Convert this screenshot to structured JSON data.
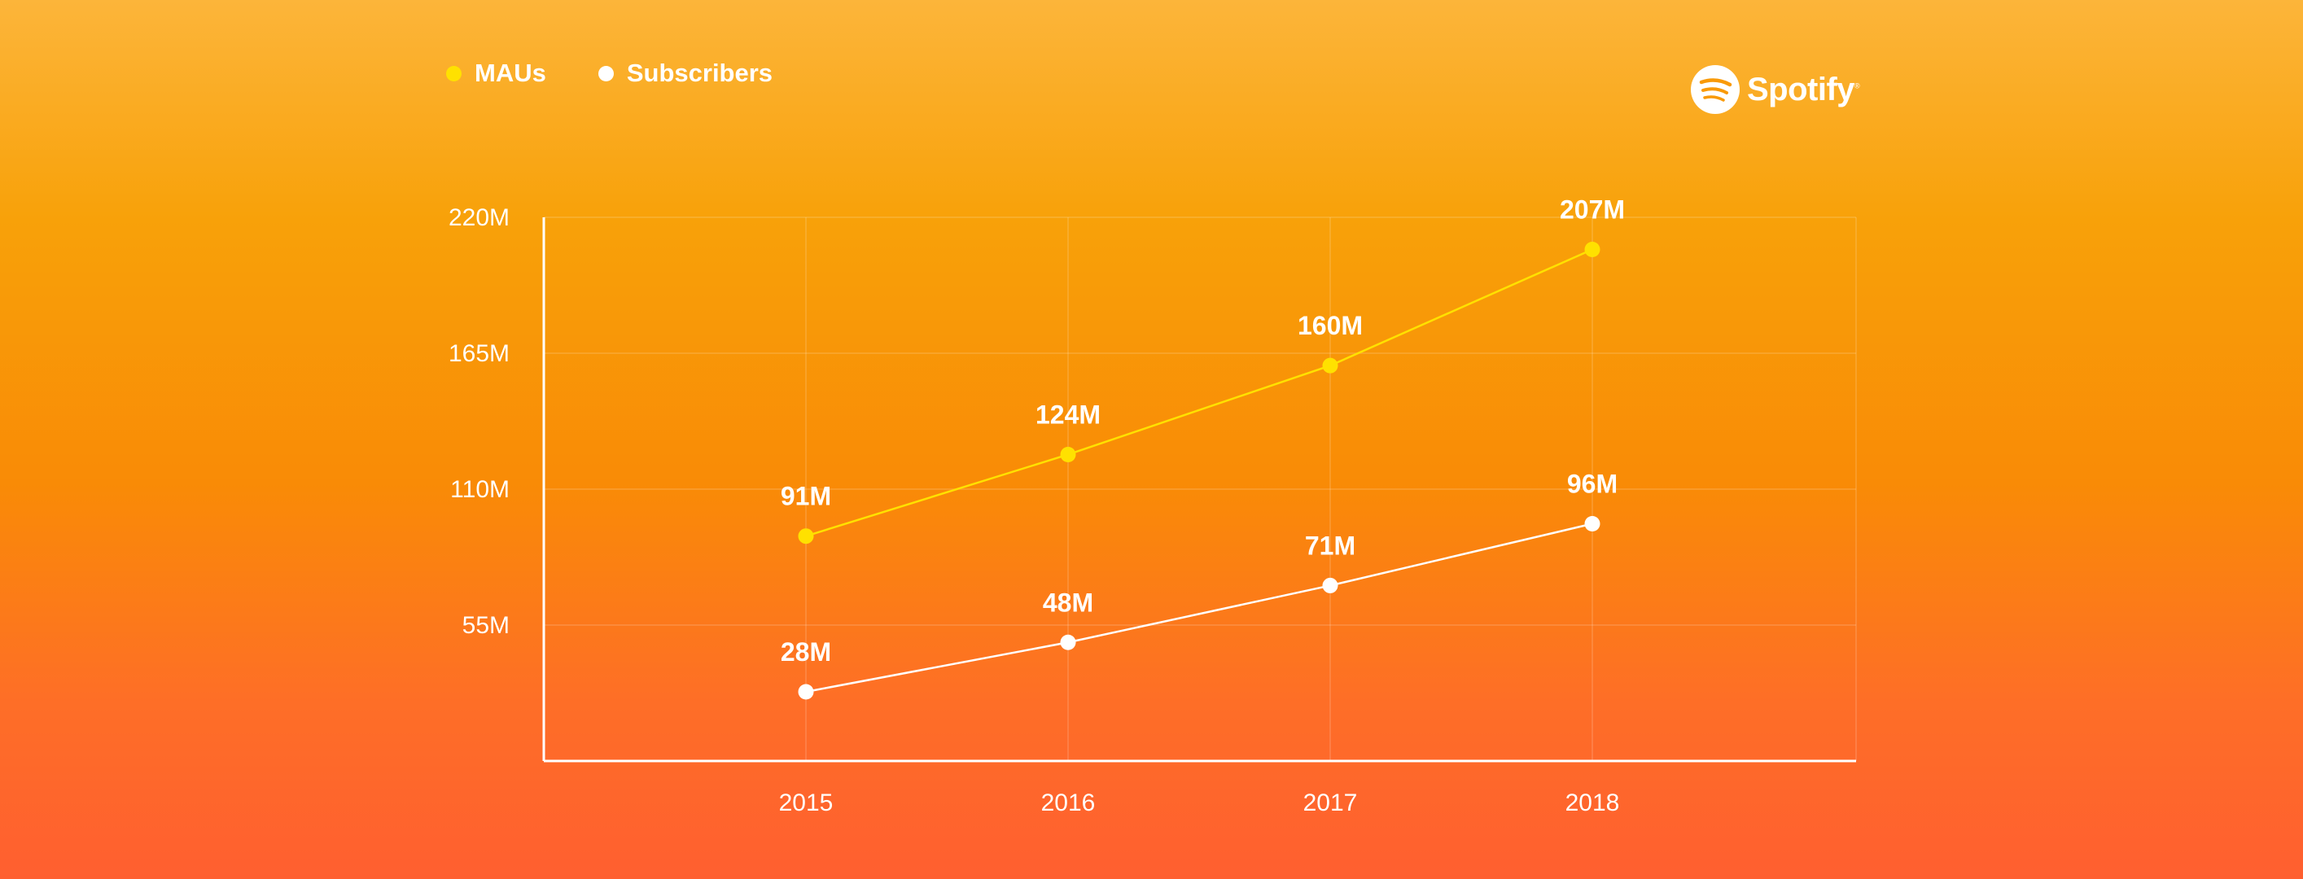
{
  "brand": {
    "name": "Spotify",
    "mark": "®"
  },
  "legend": {
    "items": [
      {
        "label": "MAUs",
        "color": "#ffe100"
      },
      {
        "label": "Subscribers",
        "color": "#ffffff"
      }
    ]
  },
  "colors": {
    "axis": "#ffffff",
    "grid": "rgba(255,255,255,0.18)",
    "background_top": "#fcb53a",
    "background_bottom": "#ff5f30"
  },
  "chart_data": {
    "type": "line",
    "title": "",
    "xlabel": "",
    "ylabel": "",
    "x": [
      "2015",
      "2016",
      "2017",
      "2018"
    ],
    "ylim": [
      0,
      220
    ],
    "y_ticks": [
      55,
      110,
      165,
      220
    ],
    "y_tick_labels": [
      "55M",
      "110M",
      "165M",
      "220M"
    ],
    "grid": true,
    "legend_position": "top-left",
    "series": [
      {
        "name": "MAUs",
        "color": "#ffe100",
        "values": [
          91,
          124,
          160,
          207
        ],
        "labels": [
          "91M",
          "124M",
          "160M",
          "207M"
        ]
      },
      {
        "name": "Subscribers",
        "color": "#ffffff",
        "values": [
          28,
          48,
          71,
          96
        ],
        "labels": [
          "28M",
          "48M",
          "71M",
          "96M"
        ]
      }
    ]
  }
}
